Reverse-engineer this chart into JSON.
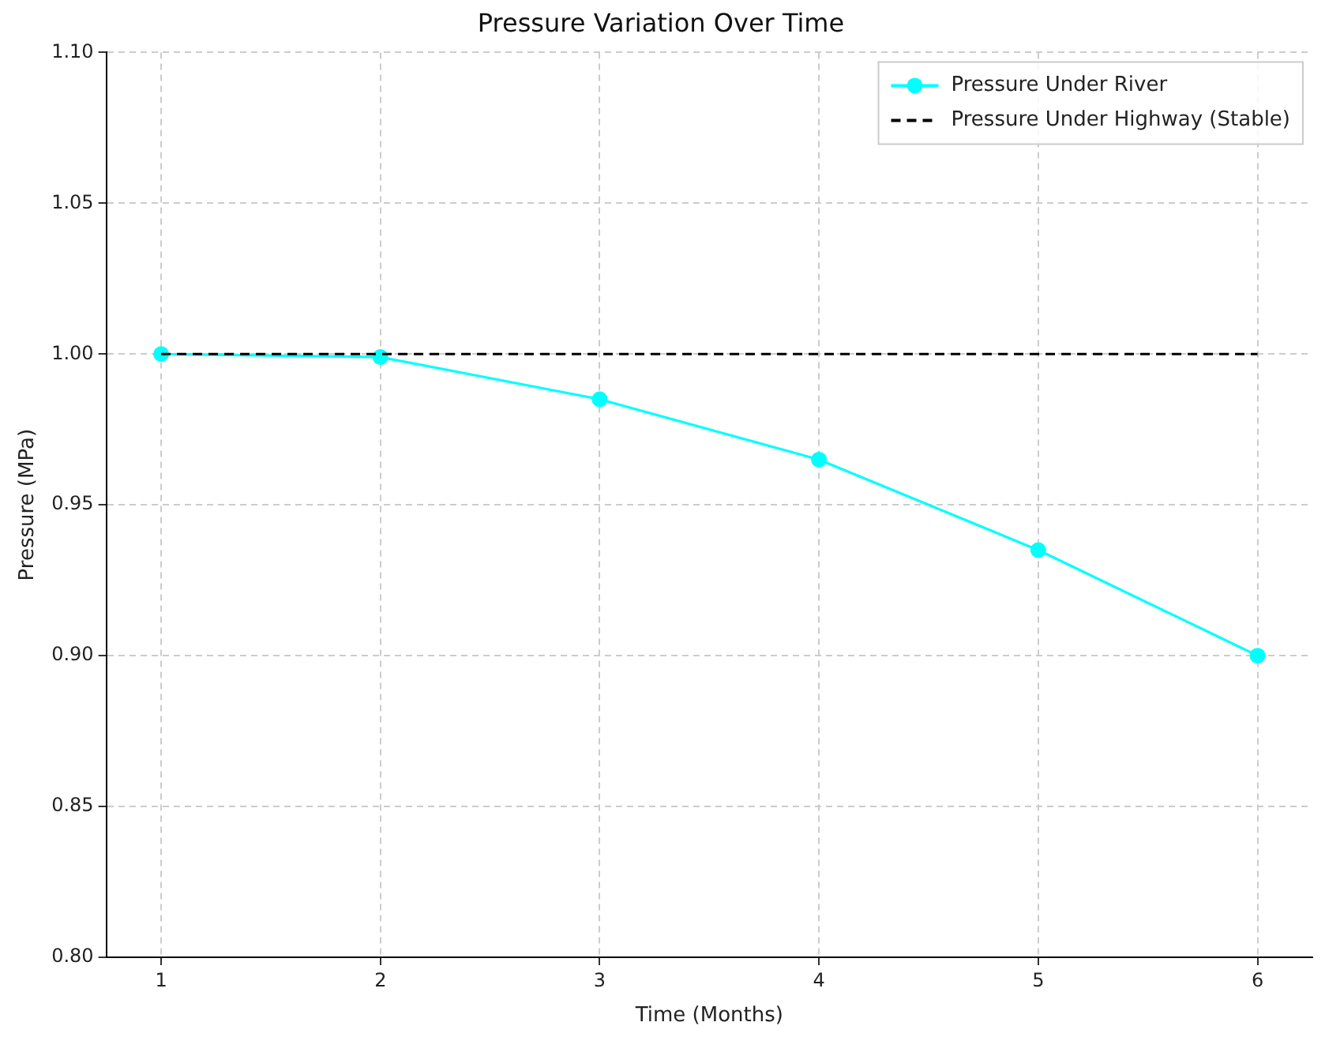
{
  "chart_data": {
    "type": "line",
    "title": "Pressure Variation Over Time",
    "xlabel": "Time (Months)",
    "ylabel": "Pressure (MPa)",
    "x": [
      1,
      2,
      3,
      4,
      5,
      6
    ],
    "series": [
      {
        "name": "Pressure Under River",
        "color": "#00ffff",
        "values": [
          1.0,
          0.999,
          0.985,
          0.965,
          0.935,
          0.9
        ],
        "marker": "circle",
        "line_style": "solid"
      },
      {
        "name": "Pressure Under Highway (Stable)",
        "color": "#000000",
        "values": [
          1.0,
          1.0,
          1.0,
          1.0,
          1.0,
          1.0
        ],
        "marker": "none",
        "line_style": "dashed"
      }
    ],
    "xlim": [
      0.75,
      6.25
    ],
    "xticks": [
      1,
      2,
      3,
      4,
      5,
      6
    ],
    "ylim": [
      0.8,
      1.1
    ],
    "yticks": [
      {
        "value": 0.8,
        "label": "0.80"
      },
      {
        "value": 0.85,
        "label": "0.85"
      },
      {
        "value": 0.9,
        "label": "0.90"
      },
      {
        "value": 0.95,
        "label": "0.95"
      },
      {
        "value": 1.0,
        "label": "1.00"
      },
      {
        "value": 1.05,
        "label": "1.05"
      },
      {
        "value": 1.1,
        "label": "1.10"
      }
    ],
    "grid": true,
    "legend": "top right"
  }
}
